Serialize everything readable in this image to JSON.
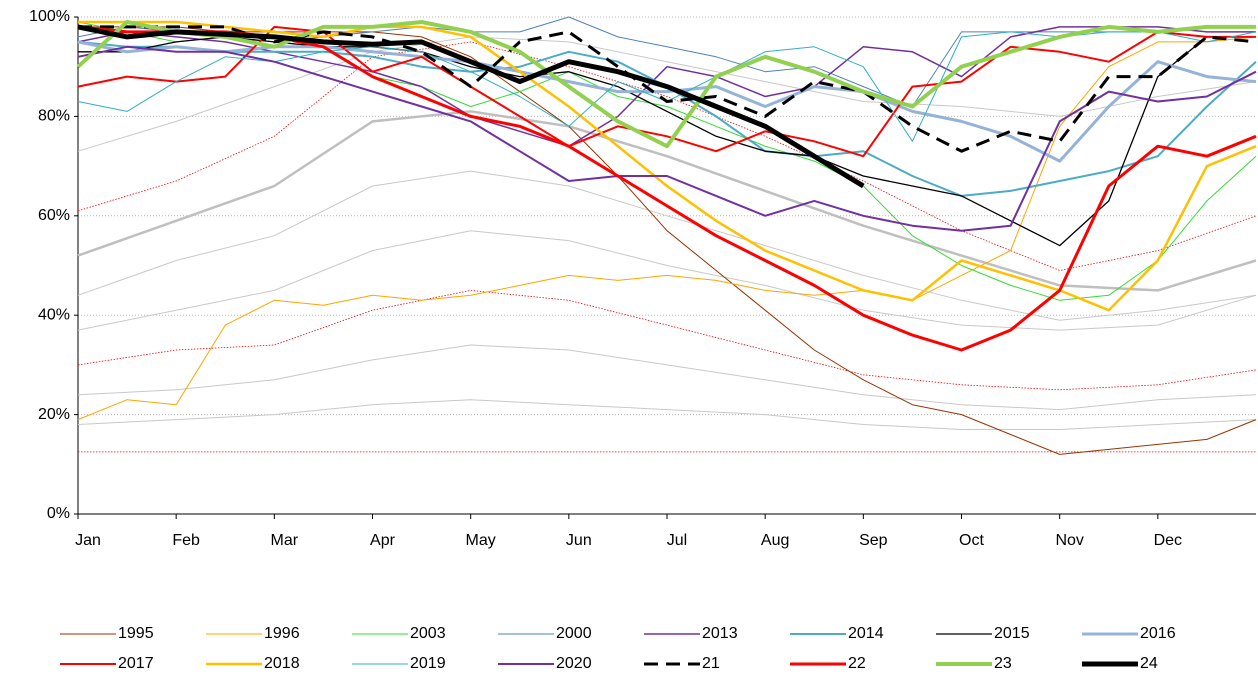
{
  "chart_data": {
    "type": "line",
    "xlim": [
      0,
      12
    ],
    "xticks": [
      {
        "value": 0,
        "label": "Jan"
      },
      {
        "value": 1,
        "label": "Feb"
      },
      {
        "value": 2,
        "label": "Mar"
      },
      {
        "value": 3,
        "label": "Apr"
      },
      {
        "value": 4,
        "label": "May"
      },
      {
        "value": 5,
        "label": "Jun"
      },
      {
        "value": 6,
        "label": "Jul"
      },
      {
        "value": 7,
        "label": "Aug"
      },
      {
        "value": 8,
        "label": "Sep"
      },
      {
        "value": 9,
        "label": "Oct"
      },
      {
        "value": 10,
        "label": "Nov"
      },
      {
        "value": 11,
        "label": "Dec"
      }
    ],
    "ylim": [
      0,
      100
    ],
    "yticks": [
      {
        "value": 0,
        "label": "0%"
      },
      {
        "value": 20,
        "label": "20%"
      },
      {
        "value": 40,
        "label": "40%"
      },
      {
        "value": 60,
        "label": "60%"
      },
      {
        "value": 80,
        "label": "80%"
      },
      {
        "value": 100,
        "label": "100%"
      }
    ],
    "grid": true,
    "legend": "bottom",
    "x": [
      0,
      0.5,
      1,
      1.5,
      2,
      2.5,
      3,
      3.5,
      4,
      4.5,
      5,
      5.5,
      6,
      6.5,
      7,
      7.5,
      8,
      8.5,
      9,
      9.5,
      10,
      10.5,
      11,
      11.5,
      12
    ],
    "series": [
      {
        "color": "#c8c8c8",
        "width": 1,
        "x": [
          0,
          1,
          2,
          3,
          4,
          5,
          6,
          7,
          8,
          9,
          10,
          11,
          12
        ],
        "values": [
          73,
          79,
          86,
          93,
          96,
          95,
          91,
          87,
          83,
          82,
          80,
          84,
          87
        ]
      },
      {
        "color": "#bfbfbf",
        "width": 2.5,
        "x": [
          0,
          1,
          2,
          3,
          4,
          5,
          6,
          7,
          8,
          9,
          10,
          11,
          12
        ],
        "values": [
          52,
          59,
          66,
          79,
          81,
          78,
          72,
          65,
          58,
          52,
          46,
          45,
          51
        ]
      },
      {
        "color": "#c8c8c8",
        "width": 1,
        "x": [
          0,
          1,
          2,
          3,
          4,
          5,
          6,
          7,
          8,
          9,
          10,
          11,
          12
        ],
        "values": [
          44,
          51,
          56,
          66,
          69,
          66,
          60,
          54,
          48,
          43,
          39,
          41,
          44
        ]
      },
      {
        "color": "#c8c8c8",
        "width": 1,
        "x": [
          0,
          1,
          2,
          3,
          4,
          5,
          6,
          7,
          8,
          9,
          10,
          11,
          12
        ],
        "values": [
          37,
          41,
          45,
          53,
          57,
          55,
          50,
          46,
          41,
          38,
          37,
          38,
          44
        ]
      },
      {
        "color": "#c8c8c8",
        "width": 1,
        "x": [
          0,
          1,
          2,
          3,
          4,
          5,
          6,
          7,
          8,
          9,
          10,
          11,
          12
        ],
        "values": [
          24,
          25,
          27,
          31,
          34,
          33,
          30,
          27,
          24,
          22,
          21,
          23,
          24
        ]
      },
      {
        "color": "#c8c8c8",
        "width": 1,
        "x": [
          0,
          1,
          2,
          3,
          4,
          5,
          6,
          7,
          8,
          9,
          10,
          11,
          12
        ],
        "values": [
          18,
          19,
          20,
          22,
          23,
          22,
          21,
          20,
          18,
          17,
          17,
          18,
          19
        ]
      },
      {
        "color": "#ff0000",
        "width": 0.8,
        "dotted": true,
        "x": [
          0,
          1,
          2,
          3,
          4,
          5,
          6,
          7,
          8,
          9,
          10,
          11,
          12
        ],
        "values": [
          61,
          67,
          76,
          92,
          95,
          90,
          84,
          76,
          67,
          57,
          49,
          53,
          60
        ]
      },
      {
        "color": "#ff0000",
        "width": 0.8,
        "dotted": true,
        "x": [
          0,
          1,
          2,
          3,
          4,
          5,
          6,
          7,
          8,
          9,
          10,
          11,
          12
        ],
        "values": [
          30,
          33,
          34,
          41,
          45,
          43,
          38,
          33,
          28,
          26,
          25,
          26,
          29
        ]
      },
      {
        "color": "#ff0000",
        "width": 0.8,
        "dotted": true,
        "x": [
          0,
          12
        ],
        "values": [
          12.5,
          12.5
        ]
      },
      {
        "name": "1995",
        "color": "#993300",
        "width": 1,
        "values": [
          98,
          98,
          98,
          97,
          97,
          97,
          97,
          96,
          92,
          85,
          78,
          68,
          57,
          49,
          41,
          33,
          27,
          22,
          20,
          16,
          12,
          13,
          14,
          15,
          19
        ]
      },
      {
        "name": "1996",
        "color": "#ffa500",
        "width": 1,
        "values": [
          19,
          23,
          22,
          38,
          43,
          42,
          44,
          43,
          44,
          46,
          48,
          47,
          48,
          47,
          45,
          44,
          45,
          43,
          48,
          53,
          78,
          90,
          95,
          95,
          96
        ]
      },
      {
        "name": "2003",
        "color": "#33dd33",
        "width": 1,
        "values": [
          99,
          97,
          95,
          96,
          94,
          94,
          88,
          86,
          82,
          85,
          89,
          84,
          82,
          78,
          74,
          71,
          66,
          56,
          50,
          46,
          43,
          44,
          51,
          63,
          72
        ]
      },
      {
        "name": "2000",
        "color": "#4f81bd",
        "width": 1,
        "values": [
          96,
          98,
          97,
          96,
          95,
          96,
          97,
          98,
          97,
          97,
          100,
          96,
          94,
          92,
          89,
          90,
          86,
          82,
          97,
          97,
          97,
          97,
          97,
          98,
          98
        ]
      },
      {
        "name": "2013",
        "color": "#7030a0",
        "width": 1.5,
        "values": [
          95,
          97,
          96,
          95,
          93,
          91,
          89,
          86,
          80,
          77,
          74,
          80,
          90,
          88,
          84,
          86,
          94,
          93,
          88,
          96,
          98,
          98,
          98,
          97,
          97
        ]
      },
      {
        "name": "2014",
        "color": "#4bacc6",
        "width": 2,
        "values": [
          95,
          94,
          94,
          93,
          93,
          93,
          92,
          90,
          89,
          90,
          93,
          91,
          86,
          80,
          73,
          72,
          73,
          68,
          64,
          65,
          67,
          69,
          72,
          82,
          91
        ]
      },
      {
        "name": "2015",
        "color": "#000000",
        "width": 1.3,
        "values": [
          93,
          93,
          95,
          96,
          95,
          94,
          94,
          93,
          90,
          88,
          89,
          86,
          81,
          76,
          73,
          72,
          68,
          66,
          64,
          59,
          54,
          63,
          88,
          96,
          96
        ]
      },
      {
        "name": "2016",
        "color": "#95b3d7",
        "width": 3,
        "values": [
          95,
          93,
          94,
          93,
          94,
          94,
          93,
          92,
          91,
          89,
          87,
          85,
          85,
          86,
          82,
          86,
          85,
          81,
          79,
          76,
          71,
          82,
          91,
          88,
          87
        ]
      },
      {
        "name": "2017",
        "color": "#ff0000",
        "width": 2,
        "values": [
          86,
          88,
          87,
          88,
          98,
          97,
          89,
          92,
          86,
          80,
          74,
          78,
          76,
          73,
          77,
          75,
          72,
          86,
          87,
          94,
          93,
          91,
          97,
          96,
          96
        ]
      },
      {
        "name": "2018",
        "color": "#ffc000",
        "width": 2.5,
        "values": [
          99,
          99,
          99,
          98,
          97,
          96,
          98,
          98,
          96,
          89,
          82,
          74,
          66,
          59,
          53,
          49,
          45,
          43,
          51,
          48,
          45,
          41,
          51,
          70,
          74
        ]
      },
      {
        "name": "2019",
        "color": "#31b0c0",
        "width": 1,
        "values": [
          83,
          81,
          87,
          92,
          91,
          93,
          94,
          93,
          89,
          84,
          78,
          87,
          83,
          88,
          93,
          94,
          90,
          75,
          96,
          97,
          96,
          97,
          97,
          95,
          97
        ]
      },
      {
        "name": "2020",
        "color": "#7030a0",
        "width": 2,
        "values": [
          92,
          94,
          93,
          93,
          91,
          88,
          85,
          82,
          79,
          73,
          67,
          68,
          68,
          64,
          60,
          63,
          60,
          58,
          57,
          58,
          79,
          85,
          83,
          84,
          89
        ]
      },
      {
        "name": "21",
        "color": "#000000",
        "width": 3,
        "dash": true,
        "values": [
          98,
          98,
          98,
          98,
          95,
          97,
          96,
          93,
          86,
          95,
          97,
          90,
          83,
          84,
          80,
          87,
          85,
          78,
          73,
          77,
          75,
          88,
          88,
          96,
          95
        ]
      },
      {
        "name": "22",
        "color": "#ff0000",
        "width": 3,
        "values": [
          98,
          97,
          97,
          97,
          96,
          94,
          88,
          84,
          80,
          78,
          74,
          68,
          62,
          56,
          51,
          46,
          40,
          36,
          33,
          37,
          45,
          66,
          74,
          72,
          76
        ]
      },
      {
        "name": "23",
        "color": "#92d050",
        "width": 4,
        "values": [
          90,
          99,
          97,
          96,
          94,
          98,
          98,
          99,
          97,
          93,
          86,
          79,
          74,
          88,
          92,
          89,
          85,
          82,
          90,
          93,
          96,
          98,
          97,
          98,
          98
        ]
      },
      {
        "name": "24",
        "color": "#000000",
        "width": 5,
        "values": [
          98,
          96,
          97,
          96.5,
          96,
          95,
          94.5,
          95,
          91,
          87,
          91,
          89,
          86,
          82,
          78,
          72,
          66,
          null,
          null,
          null,
          null,
          null,
          null,
          null,
          null
        ]
      }
    ]
  }
}
